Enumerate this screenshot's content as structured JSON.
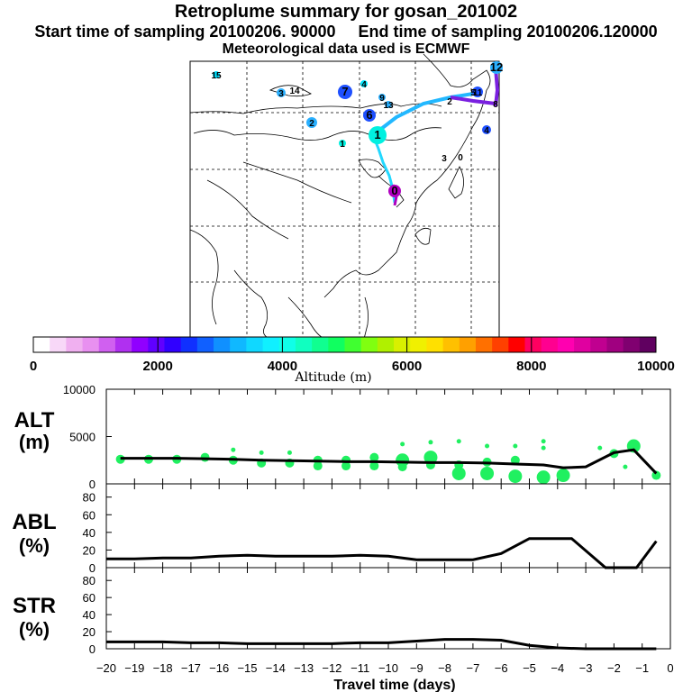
{
  "header": {
    "title": "Retroplume summary for gosan_201002",
    "subtitle": "Start time of sampling 20100206. 90000     End time of sampling 20100206.120000",
    "met_line": "Meteorological data used is ECMWF"
  },
  "map": {
    "markers": [
      {
        "label": "15",
        "lon_lat_ref": "far-west",
        "color": "#00e0ff",
        "size": "small"
      },
      {
        "label": "3",
        "color": "#2ab0ff",
        "size": "small"
      },
      {
        "label": "14",
        "color": "#2ab0ff",
        "size": "small"
      },
      {
        "label": "7",
        "color": "#1e50ff",
        "size": "large"
      },
      {
        "label": "4",
        "color": "#00e8ff",
        "size": "small"
      },
      {
        "label": "9",
        "color": "#2ab0ff",
        "size": "small"
      },
      {
        "label": "13",
        "color": "#2ab0ff",
        "size": "small"
      },
      {
        "label": "6",
        "color": "#1e50ff",
        "size": "medium"
      },
      {
        "label": "2",
        "color": "#2ab0ff",
        "size": "medium"
      },
      {
        "label": "1",
        "color": "#00f0e0",
        "size": "small"
      },
      {
        "label": "1",
        "color": "#00f0e0",
        "size": "large"
      },
      {
        "label": "2",
        "color": "#2ab0ff",
        "size": "medium"
      },
      {
        "label": "11",
        "color": "#1e50ff",
        "size": "medium"
      },
      {
        "label": "12",
        "color": "#2ab0ff",
        "size": "small"
      },
      {
        "label": "5",
        "color": "#1e50ff",
        "size": "small"
      },
      {
        "label": "8",
        "color": "#8010d0",
        "size": "small"
      },
      {
        "label": "4",
        "color": "#1e50ff",
        "size": "small"
      },
      {
        "label": "3",
        "color": "#000000",
        "size": "text"
      },
      {
        "label": "0",
        "color": "#b000c0",
        "size": "medium"
      }
    ]
  },
  "colorbar": {
    "ticks": [
      "0",
      "2000",
      "4000",
      "6000",
      "8000",
      "10000"
    ],
    "label": "Altitude (m)",
    "colors": [
      "#ffffff",
      "#f8d8f8",
      "#f0b0f0",
      "#e890f0",
      "#d060f0",
      "#b030f0",
      "#9000ff",
      "#6000ff",
      "#3000ff",
      "#1030ff",
      "#1060ff",
      "#1090ff",
      "#10b8ff",
      "#10d8ff",
      "#10f0ff",
      "#10ffe8",
      "#10ffc0",
      "#10ff90",
      "#10ff60",
      "#40ff30",
      "#80ff10",
      "#b0f000",
      "#d8f000",
      "#f0f000",
      "#ffe000",
      "#ffc000",
      "#ffa000",
      "#ff7000",
      "#ff4000",
      "#ff0000",
      "#ff0060",
      "#ff0090",
      "#ff00b0",
      "#e000a0",
      "#c00090",
      "#a00080",
      "#800070",
      "#600060"
    ]
  },
  "chart_data": [
    {
      "type": "line",
      "panel": "ALT",
      "ylabel": "ALT\n(m)",
      "ylabel_line1": "ALT",
      "ylabel_line2": "(m)",
      "ylim": [
        0,
        10000
      ],
      "yticks": [
        "0",
        "5000",
        "10000"
      ],
      "x": [
        -19.5,
        -18.5,
        -17.5,
        -16.5,
        -15.5,
        -14.5,
        -13.5,
        -12.5,
        -11.5,
        -10.5,
        -9.5,
        -8.5,
        -7.5,
        -6.5,
        -5.5,
        -4.5,
        -3.8,
        -3.0,
        -2.0,
        -1.3,
        -0.5
      ],
      "values": [
        2700,
        2700,
        2700,
        2650,
        2600,
        2500,
        2450,
        2400,
        2350,
        2350,
        2300,
        2250,
        2250,
        2200,
        2100,
        2000,
        1700,
        1800,
        3300,
        3600,
        1100
      ],
      "scatter": [
        {
          "x": -19.5,
          "y": 2600,
          "s": 2
        },
        {
          "x": -18.5,
          "y": 2600,
          "s": 2
        },
        {
          "x": -17.5,
          "y": 2600,
          "s": 2
        },
        {
          "x": -16.5,
          "y": 2800,
          "s": 2
        },
        {
          "x": -15.5,
          "y": 3600,
          "s": 1
        },
        {
          "x": -15.5,
          "y": 2500,
          "s": 2
        },
        {
          "x": -14.5,
          "y": 3300,
          "s": 1
        },
        {
          "x": -14.5,
          "y": 2200,
          "s": 2
        },
        {
          "x": -13.5,
          "y": 3300,
          "s": 1
        },
        {
          "x": -13.5,
          "y": 2200,
          "s": 2
        },
        {
          "x": -12.5,
          "y": 2500,
          "s": 2
        },
        {
          "x": -12.5,
          "y": 1900,
          "s": 2
        },
        {
          "x": -11.5,
          "y": 2500,
          "s": 2
        },
        {
          "x": -11.5,
          "y": 1900,
          "s": 2
        },
        {
          "x": -10.5,
          "y": 2800,
          "s": 2
        },
        {
          "x": -10.5,
          "y": 1900,
          "s": 2
        },
        {
          "x": -9.5,
          "y": 4200,
          "s": 1
        },
        {
          "x": -9.5,
          "y": 2500,
          "s": 3
        },
        {
          "x": -9.5,
          "y": 1800,
          "s": 2
        },
        {
          "x": -8.5,
          "y": 4400,
          "s": 1
        },
        {
          "x": -8.5,
          "y": 2800,
          "s": 3
        },
        {
          "x": -8.5,
          "y": 2000,
          "s": 2
        },
        {
          "x": -7.5,
          "y": 4500,
          "s": 1
        },
        {
          "x": -7.5,
          "y": 2000,
          "s": 2
        },
        {
          "x": -7.5,
          "y": 1100,
          "s": 3
        },
        {
          "x": -6.5,
          "y": 4000,
          "s": 1
        },
        {
          "x": -6.5,
          "y": 2300,
          "s": 2
        },
        {
          "x": -6.5,
          "y": 1100,
          "s": 3
        },
        {
          "x": -5.5,
          "y": 4000,
          "s": 1
        },
        {
          "x": -5.5,
          "y": 2500,
          "s": 2
        },
        {
          "x": -5.5,
          "y": 800,
          "s": 3
        },
        {
          "x": -4.5,
          "y": 4500,
          "s": 1
        },
        {
          "x": -4.5,
          "y": 3800,
          "s": 1
        },
        {
          "x": -4.5,
          "y": 700,
          "s": 3
        },
        {
          "x": -3.8,
          "y": 900,
          "s": 3
        },
        {
          "x": -2.5,
          "y": 3800,
          "s": 1
        },
        {
          "x": -2.0,
          "y": 3200,
          "s": 2
        },
        {
          "x": -1.3,
          "y": 4000,
          "s": 3
        },
        {
          "x": -1.6,
          "y": 1800,
          "s": 1
        },
        {
          "x": -0.5,
          "y": 900,
          "s": 2
        }
      ]
    },
    {
      "type": "line",
      "panel": "ABL",
      "ylabel_line1": "ABL",
      "ylabel_line2": "(%)",
      "ylim": [
        0,
        90
      ],
      "yticks": [
        "0",
        "20",
        "40",
        "60",
        "80"
      ],
      "x": [
        -20,
        -19,
        -18,
        -17,
        -16,
        -15,
        -14,
        -13,
        -12,
        -11,
        -10,
        -9,
        -8,
        -7,
        -6,
        -5,
        -4,
        -3.5,
        -2.3,
        -1.2,
        -0.5
      ],
      "values": [
        10,
        10,
        11,
        11,
        13,
        14,
        13,
        13,
        13,
        14,
        13,
        9,
        9,
        9,
        16,
        33,
        33,
        33,
        0,
        0,
        30
      ]
    },
    {
      "type": "line",
      "panel": "STR",
      "ylabel_line1": "STR",
      "ylabel_line2": "(%)",
      "ylim": [
        0,
        90
      ],
      "yticks": [
        "0",
        "20",
        "40",
        "60",
        "80"
      ],
      "x": [
        -20,
        -19,
        -18,
        -17,
        -16,
        -15,
        -14,
        -13,
        -12,
        -11,
        -10,
        -9,
        -8,
        -7,
        -6,
        -5,
        -4,
        -3,
        -2,
        -1,
        -0.5
      ],
      "values": [
        8,
        8,
        8,
        7,
        7,
        6,
        6,
        6,
        6,
        7,
        7,
        9,
        11,
        11,
        10,
        4,
        1,
        0,
        0,
        0,
        0
      ]
    }
  ],
  "xaxis": {
    "xlabel": "Travel time (days)",
    "xlim": [
      -20,
      0
    ],
    "ticks": [
      "−20",
      "−19",
      "−18",
      "−17",
      "−16",
      "−15",
      "−14",
      "−13",
      "−12",
      "−11",
      "−10",
      "−9",
      "−8",
      "−7",
      "−6",
      "−5",
      "−4",
      "−3",
      "−2",
      "−1",
      "0"
    ]
  },
  "colors": {
    "line": "#000000",
    "scatter": "#20f060"
  }
}
